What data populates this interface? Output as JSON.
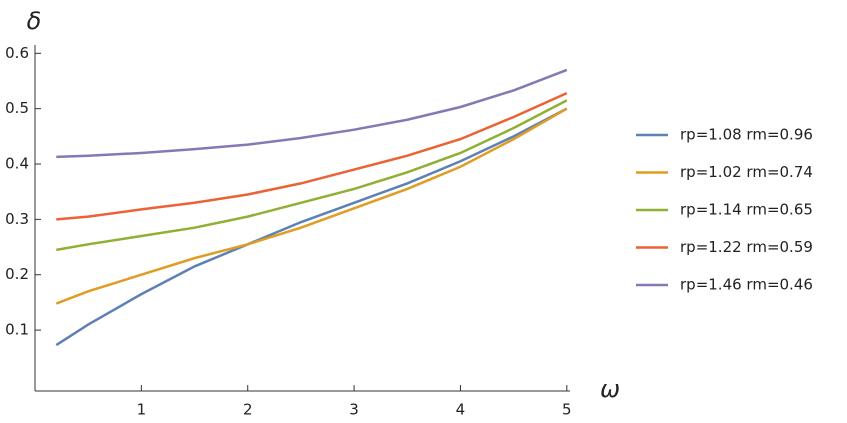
{
  "chart_data": {
    "type": "line",
    "x_label": "ω",
    "y_label": "δ",
    "x": [
      0.2,
      0.5,
      1,
      1.5,
      2,
      2.5,
      3,
      3.5,
      4,
      4.5,
      5
    ],
    "series": [
      {
        "name": "rp=1.08 rm=0.96",
        "color": "#5e81b5",
        "values": [
          0.073,
          0.11,
          0.165,
          0.215,
          0.255,
          0.295,
          0.33,
          0.365,
          0.405,
          0.45,
          0.5
        ]
      },
      {
        "name": "rp=1.02 rm=0.74",
        "color": "#e19c24",
        "values": [
          0.148,
          0.17,
          0.2,
          0.23,
          0.255,
          0.285,
          0.32,
          0.355,
          0.395,
          0.445,
          0.5
        ]
      },
      {
        "name": "rp=1.14 rm=0.65",
        "color": "#8fb032",
        "values": [
          0.245,
          0.255,
          0.27,
          0.285,
          0.305,
          0.33,
          0.355,
          0.385,
          0.42,
          0.465,
          0.515
        ]
      },
      {
        "name": "rp=1.22 rm=0.59",
        "color": "#eb6235",
        "values": [
          0.3,
          0.305,
          0.318,
          0.33,
          0.345,
          0.365,
          0.39,
          0.415,
          0.445,
          0.485,
          0.528
        ]
      },
      {
        "name": "rp=1.46 rm=0.46",
        "color": "#8778b3",
        "values": [
          0.413,
          0.415,
          0.42,
          0.427,
          0.435,
          0.447,
          0.462,
          0.48,
          0.503,
          0.533,
          0.57
        ]
      }
    ],
    "xlim": [
      0,
      5.03
    ],
    "ylim": [
      -0.01,
      0.615
    ],
    "xticks": [
      1,
      2,
      3,
      4,
      5
    ],
    "yticks": [
      0.1,
      0.2,
      0.3,
      0.4,
      0.5,
      0.6
    ],
    "grid": false,
    "legend": "right"
  }
}
